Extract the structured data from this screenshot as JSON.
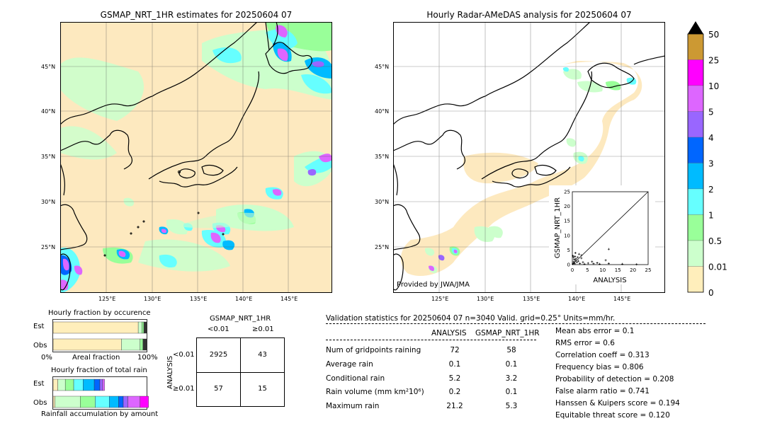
{
  "left_map": {
    "title": "GSMAP_NRT_1HR estimates for 20250604 07",
    "lat_labels": [
      "45°N",
      "40°N",
      "35°N",
      "30°N",
      "25°N"
    ],
    "lon_labels": [
      "125°E",
      "130°E",
      "135°E",
      "140°E",
      "145°E"
    ]
  },
  "right_map": {
    "title": "Hourly Radar-AMeDAS analysis for 20250604 07",
    "lat_labels": [
      "45°N",
      "40°N",
      "35°N",
      "30°N",
      "25°N"
    ],
    "lon_labels": [
      "125°E",
      "130°E",
      "135°E",
      "140°E",
      "145°E"
    ],
    "credit": "Provided by JWA/JMA"
  },
  "colorbar": {
    "labels": [
      "50",
      "25",
      "10",
      "5",
      "4",
      "3",
      "2",
      "1",
      "0.5",
      "0.01",
      "0"
    ],
    "colors": [
      "#cc9933",
      "#ff00ff",
      "#dd66ff",
      "#9966ff",
      "#0066ff",
      "#00bbff",
      "#66ffff",
      "#99ff99",
      "#ccffcc",
      "#ffeebb"
    ]
  },
  "chart_data": [
    {
      "type": "scatter",
      "xlabel": "ANALYSIS",
      "ylabel": "GSMAP_NRT_1HR",
      "xlim": [
        0,
        25
      ],
      "ylim": [
        0,
        25
      ],
      "xticks": [
        "0",
        "5",
        "10",
        "15",
        "20",
        "25"
      ],
      "yticks": [
        "0",
        "5",
        "10",
        "15",
        "20",
        "25"
      ],
      "points": [
        [
          0.1,
          0.2
        ],
        [
          0.3,
          0.5
        ],
        [
          0.5,
          1.0
        ],
        [
          0.8,
          0.3
        ],
        [
          1.0,
          1.5
        ],
        [
          1.2,
          2.0
        ],
        [
          0.4,
          2.5
        ],
        [
          0.2,
          3.0
        ],
        [
          1.5,
          0.8
        ],
        [
          2.0,
          1.2
        ],
        [
          0.6,
          1.8
        ],
        [
          2.5,
          0.4
        ],
        [
          3.0,
          2.2
        ],
        [
          0.9,
          2.8
        ],
        [
          1.8,
          2.5
        ],
        [
          4.0,
          0.2
        ],
        [
          5.2,
          0.5
        ],
        [
          6.5,
          1.0
        ],
        [
          3.5,
          0.8
        ],
        [
          7.0,
          0.3
        ],
        [
          8.2,
          0.6
        ],
        [
          9.0,
          0.2
        ],
        [
          11.0,
          1.5
        ],
        [
          12.0,
          0.4
        ],
        [
          12.0,
          5.3
        ],
        [
          3.0,
          3.2
        ],
        [
          16.5,
          0.2
        ],
        [
          21.2,
          0.1
        ],
        [
          1.0,
          4.0
        ],
        [
          2.2,
          3.6
        ]
      ]
    },
    {
      "type": "bar",
      "title": "Hourly fraction by occurence",
      "categories": [
        "Est",
        "Obs"
      ],
      "xlabel": "Areal fraction",
      "xtick_labels": [
        "0%",
        "100%"
      ],
      "series": [
        {
          "color": "#ffeebb",
          "values": [
            0.91,
            0.73
          ]
        },
        {
          "color": "#ccffcc",
          "values": [
            0.04,
            0.2
          ]
        },
        {
          "color": "#99ff99",
          "values": [
            0.02,
            0.03
          ]
        },
        {
          "color": "#333333",
          "values": [
            0.03,
            0.04
          ]
        }
      ]
    },
    {
      "type": "bar",
      "title": "Hourly fraction of total rain",
      "categories": [
        "Est",
        "Obs"
      ],
      "xlabel": "Rainfall accumulation by amount",
      "series": [
        {
          "color": "#ffeebb",
          "values": [
            0.05,
            0.02
          ]
        },
        {
          "color": "#ccffcc",
          "values": [
            0.08,
            0.27
          ]
        },
        {
          "color": "#99ff99",
          "values": [
            0.09,
            0.16
          ]
        },
        {
          "color": "#66ffff",
          "values": [
            0.1,
            0.15
          ]
        },
        {
          "color": "#00bbff",
          "values": [
            0.12,
            0.1
          ]
        },
        {
          "color": "#0066ff",
          "values": [
            0.06,
            0.05
          ]
        },
        {
          "color": "#9966ff",
          "values": [
            0.03,
            0.05
          ]
        },
        {
          "color": "#dd66ff",
          "values": [
            0.02,
            0.13
          ]
        },
        {
          "color": "#ff00ff",
          "values": [
            0.0,
            0.09
          ]
        }
      ]
    },
    {
      "type": "table",
      "title": "GSMAP_NRT_1HR",
      "column_headers": [
        "<0.01",
        "≥0.01"
      ],
      "row_axis_label": "ANALYSIS",
      "row_headers": [
        "<0.01",
        "≥0.01"
      ],
      "cells": [
        [
          "2925",
          "43"
        ],
        [
          "57",
          "15"
        ]
      ]
    }
  ],
  "validation": {
    "header": "Validation statistics for 20250604 07  n=3040 Valid. grid=0.25° Units=mm/hr.",
    "col_analysis": "ANALYSIS",
    "col_gsmap": "GSMAP_NRT_1HR",
    "rows": [
      {
        "label": "Num of gridpoints raining",
        "analysis": "72",
        "gsmap": "58"
      },
      {
        "label": "Average rain",
        "analysis": "0.1",
        "gsmap": "0.1"
      },
      {
        "label": "Conditional rain",
        "analysis": "5.2",
        "gsmap": "3.2"
      },
      {
        "label": "Rain volume (mm km²10⁶)",
        "analysis": "0.2",
        "gsmap": "0.1"
      },
      {
        "label": "Maximum rain",
        "analysis": "21.2",
        "gsmap": "5.3"
      }
    ],
    "scores": [
      "Mean abs error =    0.1",
      "RMS error =    0.6",
      "Correlation coeff =  0.313",
      "Frequency bias =  0.806",
      "Probability of detection =  0.208",
      "False alarm ratio =  0.741",
      "Hanssen & Kuipers score =  0.194",
      "Equitable threat score =  0.120"
    ]
  }
}
